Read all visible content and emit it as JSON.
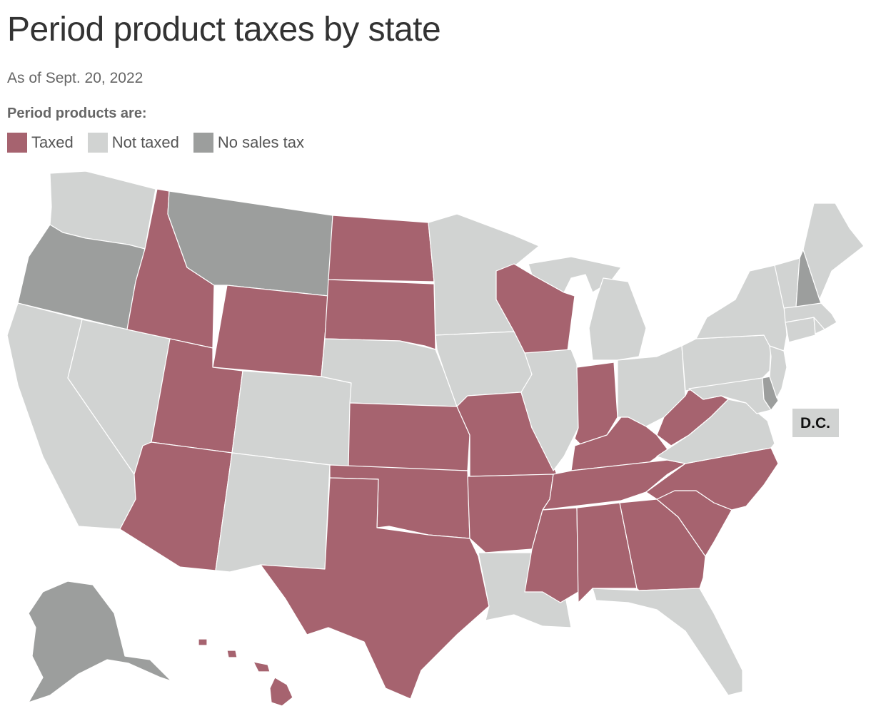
{
  "title": "Period product taxes by state",
  "subtitle": "As of Sept. 20, 2022",
  "legend": {
    "title": "Period products are:",
    "items": [
      {
        "label": "Taxed",
        "color": "#a6636f"
      },
      {
        "label": "Not taxed",
        "color": "#d1d3d2"
      },
      {
        "label": "No sales tax",
        "color": "#9c9e9d"
      }
    ]
  },
  "categories": {
    "taxed": "#a6636f",
    "not_taxed": "#d1d3d2",
    "no_sales_tax": "#9c9e9d"
  },
  "states": {
    "WA": "not_taxed",
    "OR": "no_sales_tax",
    "CA": "not_taxed",
    "NV": "not_taxed",
    "ID": "taxed",
    "MT": "no_sales_tax",
    "WY": "taxed",
    "UT": "taxed",
    "AZ": "taxed",
    "CO": "not_taxed",
    "NM": "not_taxed",
    "ND": "taxed",
    "SD": "taxed",
    "NE": "not_taxed",
    "KS": "taxed",
    "OK": "taxed",
    "TX": "taxed",
    "MN": "not_taxed",
    "IA": "not_taxed",
    "MO": "taxed",
    "AR": "taxed",
    "LA": "not_taxed",
    "WI": "taxed",
    "IL": "not_taxed",
    "MI": "not_taxed",
    "IN": "taxed",
    "OH": "not_taxed",
    "KY": "taxed",
    "TN": "taxed",
    "MS": "taxed",
    "AL": "taxed",
    "GA": "taxed",
    "FL": "not_taxed",
    "SC": "taxed",
    "NC": "taxed",
    "VA": "not_taxed",
    "WV": "taxed",
    "MD": "not_taxed",
    "DE": "no_sales_tax",
    "PA": "not_taxed",
    "NJ": "not_taxed",
    "NY": "not_taxed",
    "CT": "not_taxed",
    "RI": "not_taxed",
    "MA": "not_taxed",
    "VT": "not_taxed",
    "NH": "no_sales_tax",
    "ME": "not_taxed",
    "AK": "no_sales_tax",
    "HI": "taxed",
    "DC": "not_taxed"
  },
  "dc_label": "D.C."
}
